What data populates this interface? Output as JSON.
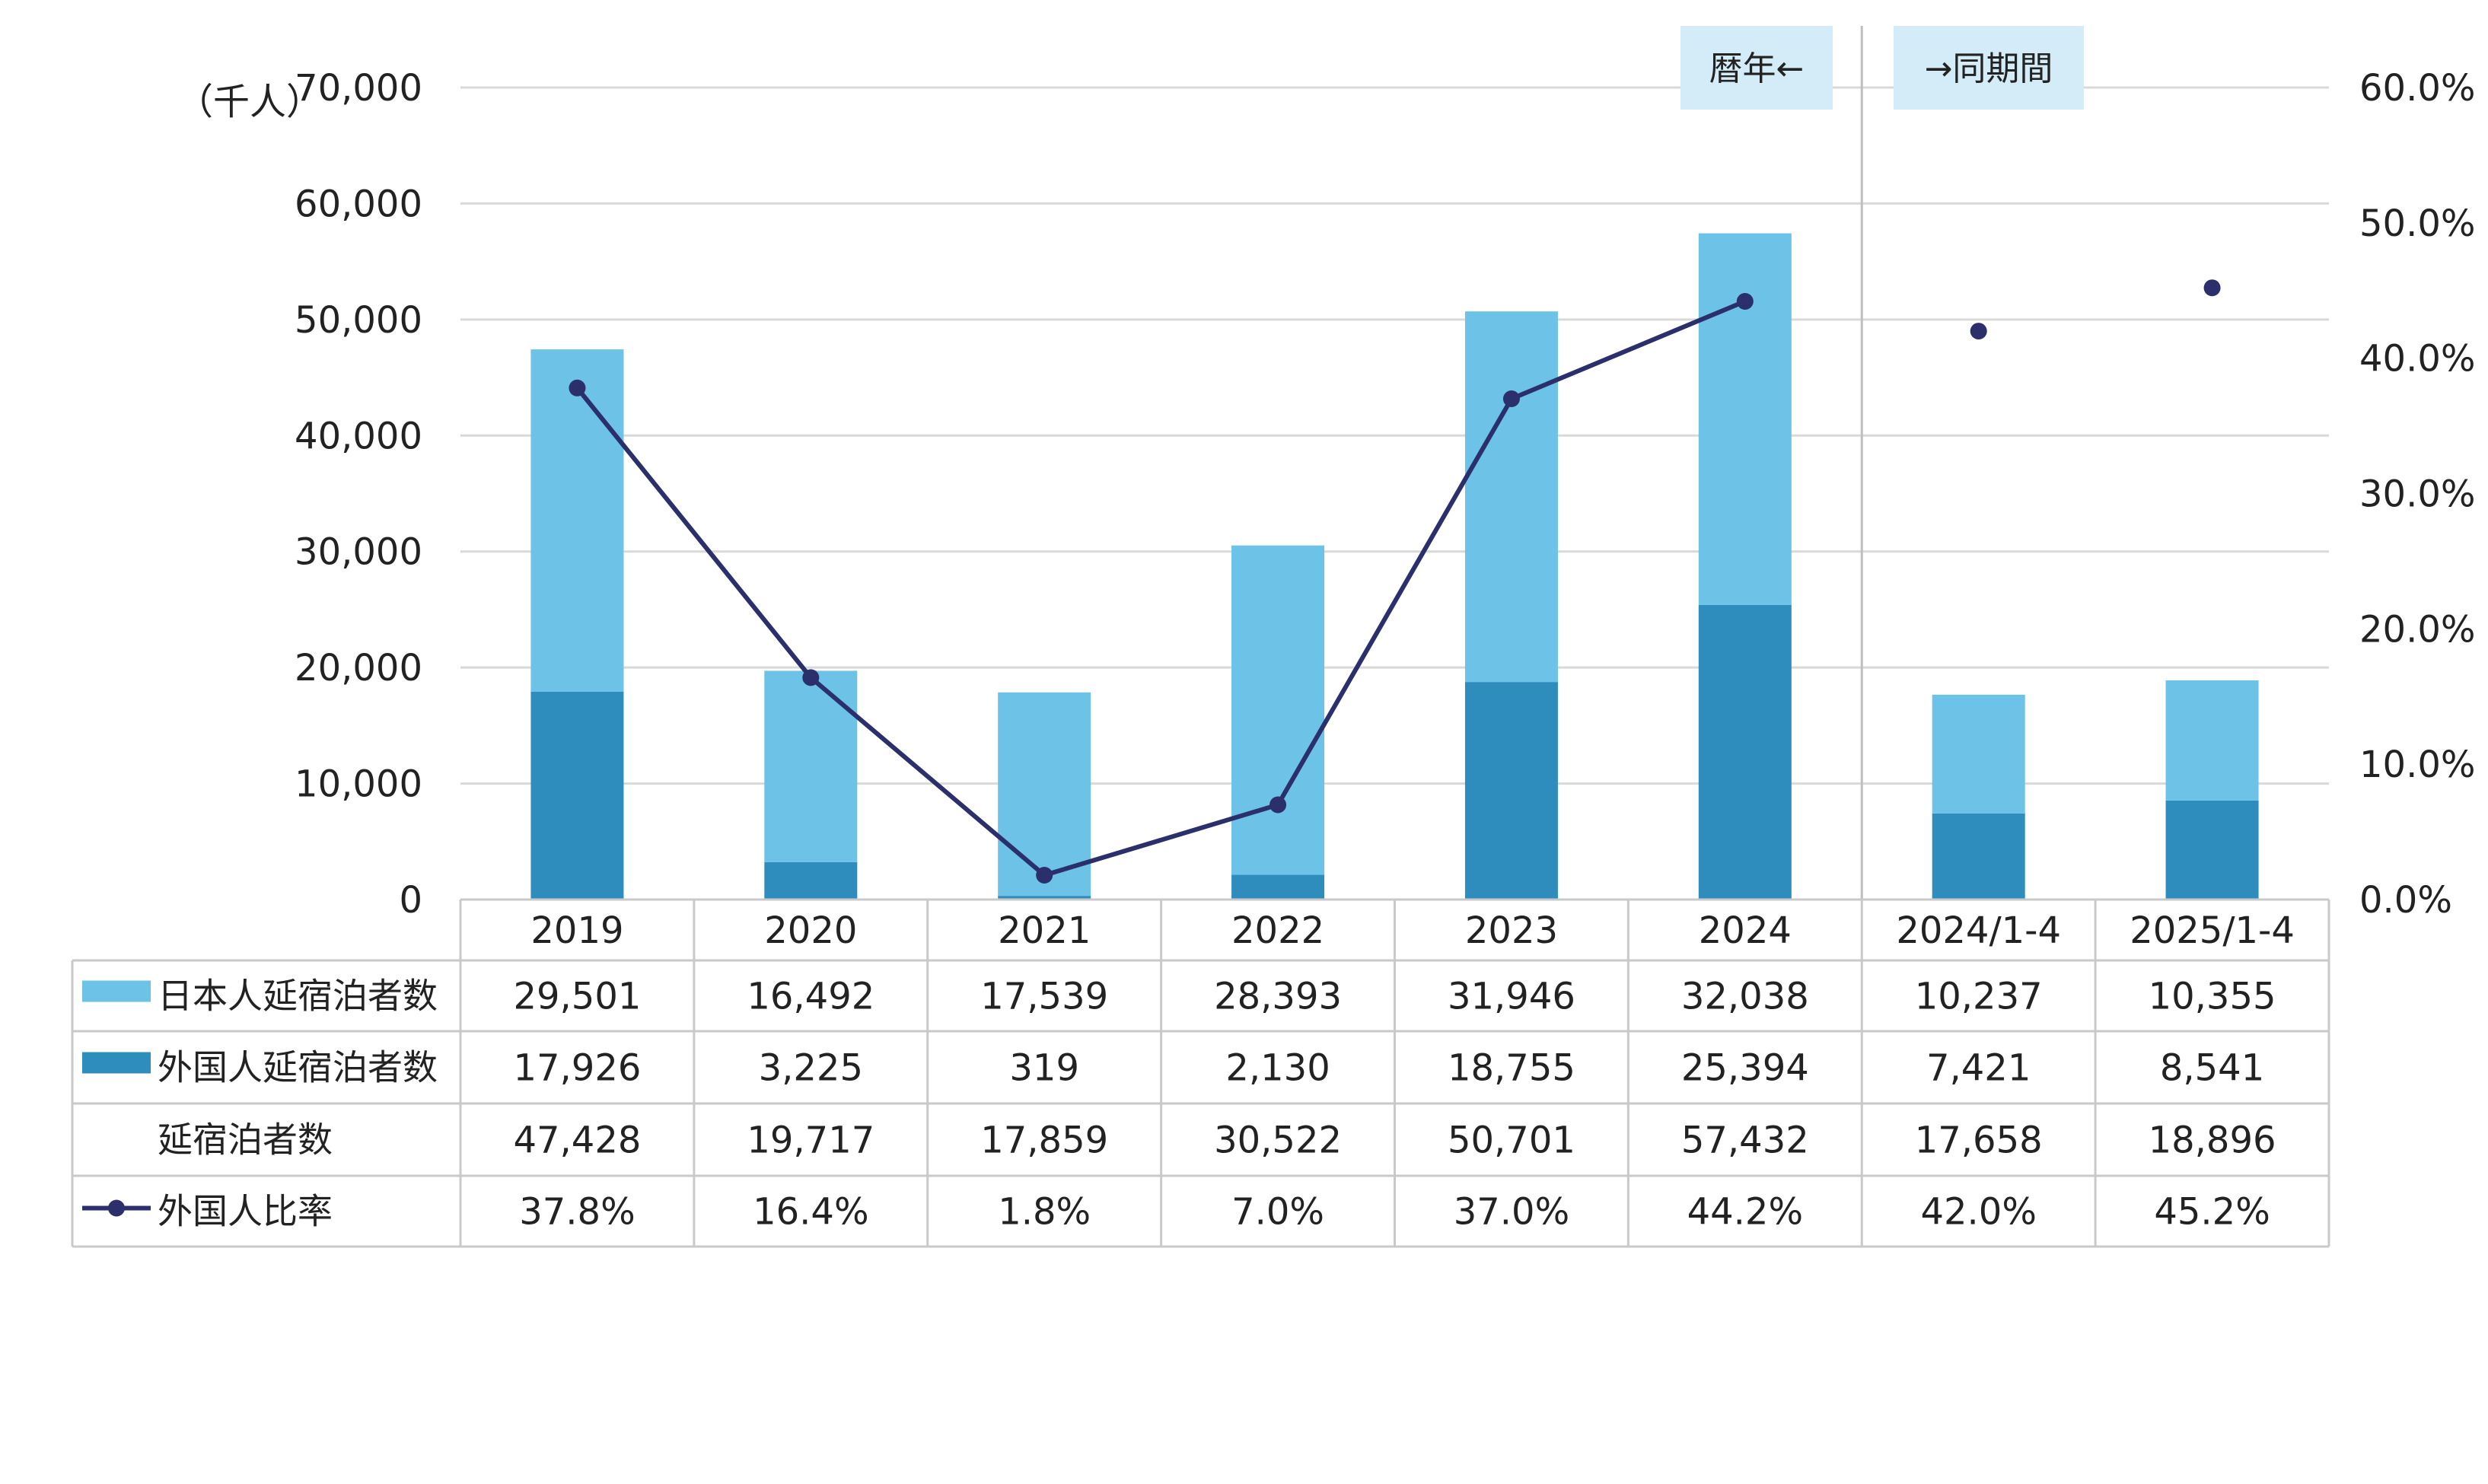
{
  "chart_data": {
    "type": "bar",
    "subtype": "stacked-bar-with-line",
    "categories": [
      "2019",
      "2020",
      "2021",
      "2022",
      "2023",
      "2024",
      "2024/1-4",
      "2025/1-4"
    ],
    "y_left": {
      "unit_label": "（千人）",
      "range": [
        0,
        70000
      ],
      "ticks": [
        "0",
        "10,000",
        "20,000",
        "30,000",
        "40,000",
        "50,000",
        "60,000",
        "70,000"
      ]
    },
    "y_right": {
      "range": [
        0,
        60
      ],
      "ticks": [
        "0.0%",
        "10.0%",
        "20.0%",
        "30.0%",
        "40.0%",
        "50.0%",
        "60.0%"
      ]
    },
    "grid": true,
    "annotations": {
      "left": "暦年←",
      "right": "→同期間"
    },
    "series": [
      {
        "name": "日本人延宿泊者数",
        "kind": "bar",
        "color": "#6cc3e7",
        "values": [
          29501,
          16492,
          17539,
          28393,
          31946,
          32038,
          10237,
          10355
        ],
        "display": [
          "29,501",
          "16,492",
          "17,539",
          "28,393",
          "31,946",
          "32,038",
          "10,237",
          "10,355"
        ]
      },
      {
        "name": "外国人延宿泊者数",
        "kind": "bar",
        "color": "#2e8dbd",
        "values": [
          17926,
          3225,
          319,
          2130,
          18755,
          25394,
          7421,
          8541
        ],
        "display": [
          "17,926",
          "3,225",
          "319",
          "2,130",
          "18,755",
          "25,394",
          "7,421",
          "8,541"
        ]
      },
      {
        "name": "延宿泊者数",
        "kind": "total",
        "values": [
          47428,
          19717,
          17859,
          30522,
          50701,
          57432,
          17658,
          18896
        ],
        "display": [
          "47,428",
          "19,717",
          "17,859",
          "30,522",
          "50,701",
          "57,432",
          "17,658",
          "18,896"
        ]
      },
      {
        "name": "外国人比率",
        "kind": "line",
        "color": "#2b2f6b",
        "axis": "right",
        "values": [
          37.8,
          16.4,
          1.8,
          7.0,
          37.0,
          44.2,
          42.0,
          45.2
        ],
        "display": [
          "37.8%",
          "16.4%",
          "1.8%",
          "7.0%",
          "37.0%",
          "44.2%",
          "42.0%",
          "45.2%"
        ]
      }
    ]
  }
}
